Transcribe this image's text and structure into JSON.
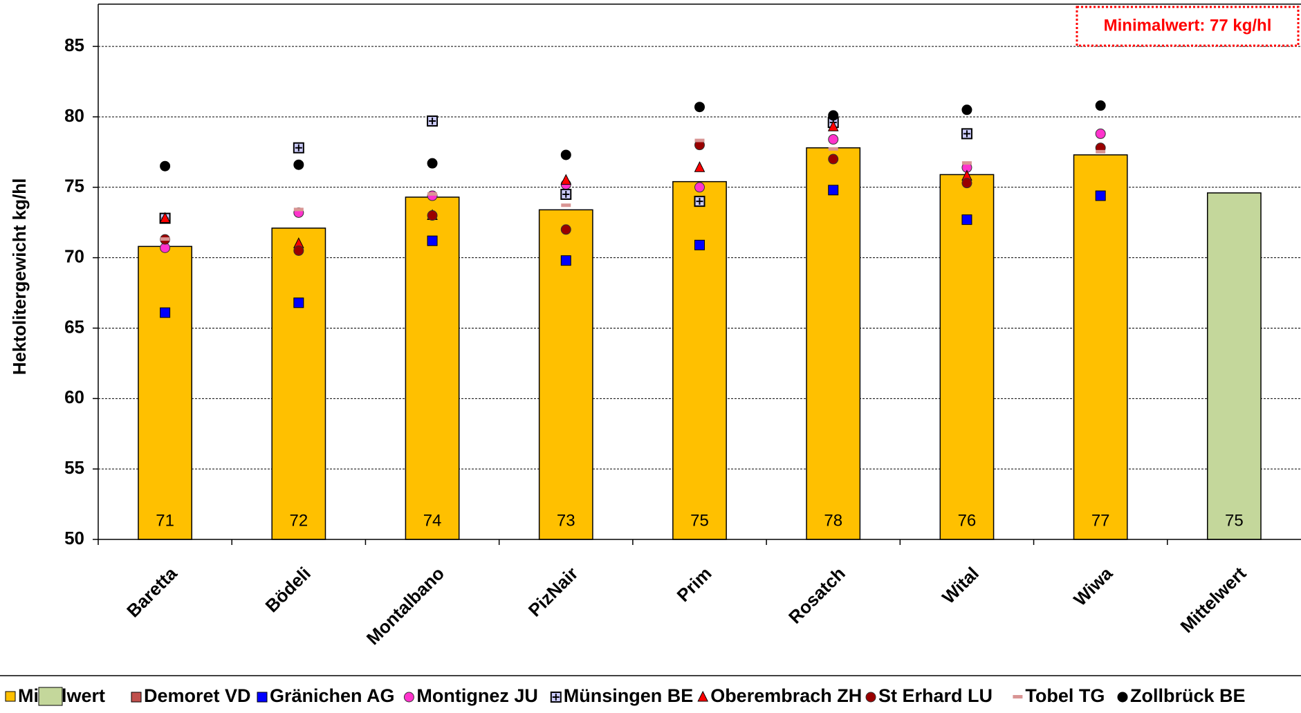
{
  "chart_data": {
    "type": "bar",
    "y_label": "Hektolitergewicht kg/hl",
    "annotation": "Minimalwert:  77 kg/hl",
    "categories": [
      "Baretta",
      "Bödeli",
      "Montalbano",
      "PizNair",
      "Prim",
      "Rosatch",
      "Wital",
      "Wiwa",
      "Mittelwert"
    ],
    "bar_name": "Mittelwert",
    "values": [
      70.8,
      72.1,
      74.3,
      73.4,
      75.4,
      77.8,
      75.9,
      77.3,
      74.6
    ],
    "value_labels": [
      "71",
      "72",
      "74",
      "73",
      "75",
      "78",
      "76",
      "77",
      "75"
    ],
    "colors": [
      "#ffc000",
      "#ffc000",
      "#ffc000",
      "#ffc000",
      "#ffc000",
      "#ffc000",
      "#ffc000",
      "#ffc000",
      "#c4d79b"
    ],
    "ylim": [
      50,
      88
    ],
    "yticks": [
      50,
      55,
      60,
      65,
      70,
      75,
      80,
      85
    ],
    "grid": true,
    "series": [
      {
        "name": "Demoret VD",
        "color": "#c0504d",
        "marker": "square",
        "values": [
          null,
          null,
          null,
          null,
          null,
          null,
          null,
          null,
          null
        ]
      },
      {
        "name": "Gränichen AG",
        "color": "#0000ff",
        "marker": "square",
        "values": [
          66.1,
          66.8,
          71.2,
          69.8,
          70.9,
          74.8,
          72.7,
          74.4,
          null
        ]
      },
      {
        "name": "Montignez JU",
        "color": "#ff33cc",
        "marker": "circle",
        "values": [
          70.7,
          73.2,
          74.4,
          75.2,
          75.0,
          78.4,
          76.4,
          78.8,
          null
        ]
      },
      {
        "name": "Münsingen BE",
        "color": "#ccccff",
        "marker": "plus",
        "values": [
          72.8,
          77.8,
          79.7,
          74.5,
          74.0,
          79.6,
          78.8,
          null,
          null
        ]
      },
      {
        "name": "Oberembrach ZH",
        "color": "#ff0000",
        "marker": "triangle",
        "values": [
          72.8,
          71.0,
          73.0,
          75.5,
          76.4,
          79.3,
          75.8,
          null,
          null
        ]
      },
      {
        "name": "St Erhard LU",
        "color": "#990000",
        "marker": "circle",
        "values": [
          71.3,
          70.5,
          73.0,
          72.0,
          78.0,
          77.0,
          75.3,
          77.8,
          null
        ]
      },
      {
        "name": "Tobel TG",
        "color": "#d99594",
        "marker": "dash",
        "values": [
          71.3,
          73.4,
          74.5,
          73.7,
          78.3,
          77.7,
          76.7,
          77.5,
          null
        ]
      },
      {
        "name": "Zollbrück BE",
        "color": "#000000",
        "marker": "circle",
        "values": [
          76.5,
          76.6,
          76.7,
          77.3,
          80.7,
          80.1,
          80.5,
          80.8,
          null
        ]
      }
    ]
  }
}
